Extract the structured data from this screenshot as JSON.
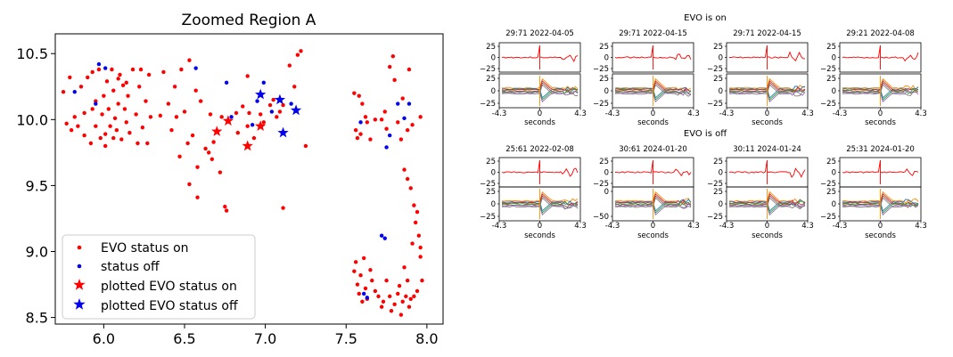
{
  "chart_data": [
    {
      "type": "scatter",
      "title": "Zoomed Region A",
      "xlim": [
        5.7,
        8.1
      ],
      "ylim": [
        8.45,
        10.65
      ],
      "x_ticks": [
        "6.0",
        "6.5",
        "7.0",
        "7.5",
        "8.0"
      ],
      "x_tick_values": [
        6.0,
        6.5,
        7.0,
        7.5,
        8.0
      ],
      "y_ticks": [
        "8.5",
        "9.0",
        "9.5",
        "10.0",
        "10.5"
      ],
      "y_tick_values": [
        8.5,
        9.0,
        9.5,
        10.0,
        10.5
      ],
      "legend": {
        "placement": "lower-left",
        "entries": [
          "EVO status on",
          "status off",
          "plotted EVO status on",
          "plotted EVO status off"
        ]
      },
      "series": [
        {
          "name": "EVO status on",
          "marker": "dot",
          "color": "#ff0000",
          "points": [
            [
              5.75,
              10.21
            ],
            [
              5.77,
              9.97
            ],
            [
              5.79,
              10.32
            ],
            [
              5.8,
              9.92
            ],
            [
              5.82,
              10.02
            ],
            [
              5.84,
              9.95
            ],
            [
              5.86,
              10.25
            ],
            [
              5.88,
              9.88
            ],
            [
              5.88,
              10.05
            ],
            [
              5.9,
              10.32
            ],
            [
              5.92,
              9.82
            ],
            [
              5.93,
              10.36
            ],
            [
              5.95,
              10.14
            ],
            [
              5.95,
              9.95
            ],
            [
              5.97,
              10.38
            ],
            [
              5.98,
              9.86
            ],
            [
              5.99,
              10.04
            ],
            [
              6.0,
              10.18
            ],
            [
              6.01,
              9.89
            ],
            [
              6.02,
              10.29
            ],
            [
              6.03,
              10.08
            ],
            [
              6.04,
              9.95
            ],
            [
              6.05,
              10.38
            ],
            [
              6.06,
              10.22
            ],
            [
              6.07,
              10.01
            ],
            [
              6.08,
              9.92
            ],
            [
              6.09,
              10.12
            ],
            [
              6.1,
              10.34
            ],
            [
              6.11,
              9.85
            ],
            [
              6.12,
              10.26
            ],
            [
              6.13,
              10.08
            ],
            [
              6.14,
              9.98
            ],
            [
              6.15,
              10.18
            ],
            [
              6.16,
              9.9
            ],
            [
              6.18,
              10.38
            ],
            [
              6.2,
              10.04
            ],
            [
              6.21,
              9.82
            ],
            [
              6.22,
              10.25
            ],
            [
              6.23,
              10.38
            ],
            [
              6.24,
              9.94
            ],
            [
              6.26,
              10.14
            ],
            [
              6.27,
              9.82
            ],
            [
              6.28,
              10.34
            ],
            [
              6.29,
              10.02
            ],
            [
              5.93,
              10.08
            ],
            [
              6.01,
              9.8
            ],
            [
              6.06,
              9.86
            ],
            [
              6.09,
              10.31
            ],
            [
              6.14,
              10.28
            ],
            [
              6.35,
              10.03
            ],
            [
              6.37,
              10.36
            ],
            [
              6.4,
              10.12
            ],
            [
              6.42,
              9.92
            ],
            [
              6.44,
              10.25
            ],
            [
              6.45,
              10.02
            ],
            [
              6.47,
              9.72
            ],
            [
              6.48,
              10.38
            ],
            [
              6.5,
              10.06
            ],
            [
              6.52,
              9.82
            ],
            [
              6.53,
              10.45
            ],
            [
              6.55,
              9.88
            ],
            [
              6.57,
              10.22
            ],
            [
              6.58,
              9.64
            ],
            [
              6.6,
              10.14
            ],
            [
              6.63,
              9.78
            ],
            [
              6.65,
              9.75
            ],
            [
              6.66,
              10.04
            ],
            [
              6.67,
              9.7
            ],
            [
              6.68,
              9.83
            ],
            [
              6.72,
              9.6
            ],
            [
              6.73,
              10.02
            ],
            [
              6.75,
              9.34
            ],
            [
              6.76,
              9.31
            ],
            [
              6.53,
              9.51
            ],
            [
              6.58,
              9.41
            ],
            [
              6.82,
              10.05
            ],
            [
              6.83,
              9.9
            ],
            [
              6.86,
              10.1
            ],
            [
              6.89,
              9.95
            ],
            [
              6.9,
              10.05
            ],
            [
              6.93,
              9.86
            ],
            [
              6.97,
              10.04
            ],
            [
              6.99,
              9.98
            ],
            [
              7.03,
              10.11
            ],
            [
              7.07,
              10.02
            ],
            [
              7.09,
              10.06
            ],
            [
              7.11,
              10.11
            ],
            [
              7.15,
              10.41
            ],
            [
              7.18,
              10.25
            ],
            [
              7.2,
              10.49
            ],
            [
              7.22,
              10.52
            ],
            [
              7.25,
              9.8
            ],
            [
              7.11,
              9.33
            ],
            [
              7.05,
              10.15
            ],
            [
              6.89,
              10.33
            ],
            [
              7.55,
              10.2
            ],
            [
              7.56,
              9.92
            ],
            [
              7.57,
              9.86
            ],
            [
              7.58,
              10.18
            ],
            [
              7.59,
              9.89
            ],
            [
              7.6,
              10.12
            ],
            [
              7.62,
              10.02
            ],
            [
              7.63,
              9.98
            ],
            [
              7.65,
              9.85
            ],
            [
              7.68,
              10.0
            ],
            [
              7.72,
              10.0
            ],
            [
              7.74,
              10.06
            ],
            [
              7.75,
              9.93
            ],
            [
              7.77,
              10.4
            ],
            [
              7.8,
              10.3
            ],
            [
              7.82,
              9.98
            ],
            [
              7.84,
              9.85
            ],
            [
              7.85,
              10.16
            ],
            [
              7.86,
              9.62
            ],
            [
              7.88,
              9.92
            ],
            [
              7.89,
              10.38
            ],
            [
              7.91,
              9.96
            ],
            [
              7.96,
              10.02
            ],
            [
              7.79,
              10.48
            ],
            [
              7.88,
              9.55
            ],
            [
              7.9,
              9.48
            ],
            [
              7.92,
              9.35
            ],
            [
              7.93,
              9.22
            ],
            [
              7.94,
              9.3
            ],
            [
              7.95,
              9.12
            ],
            [
              7.91,
              9.06
            ],
            [
              7.96,
              9.03
            ],
            [
              7.55,
              8.85
            ],
            [
              7.56,
              8.92
            ],
            [
              7.57,
              8.75
            ],
            [
              7.58,
              8.68
            ],
            [
              7.59,
              8.82
            ],
            [
              7.6,
              8.62
            ],
            [
              7.61,
              8.95
            ],
            [
              7.62,
              8.72
            ],
            [
              7.63,
              8.64
            ],
            [
              7.65,
              8.86
            ],
            [
              7.66,
              8.78
            ],
            [
              7.68,
              8.7
            ],
            [
              7.7,
              8.66
            ],
            [
              7.72,
              8.58
            ],
            [
              7.73,
              8.62
            ],
            [
              7.75,
              8.78
            ],
            [
              7.77,
              8.66
            ],
            [
              7.78,
              8.55
            ],
            [
              7.8,
              8.6
            ],
            [
              7.82,
              8.68
            ],
            [
              7.83,
              8.74
            ],
            [
              7.84,
              8.52
            ],
            [
              7.85,
              8.62
            ],
            [
              7.86,
              8.88
            ],
            [
              7.87,
              8.66
            ],
            [
              7.88,
              8.78
            ],
            [
              7.89,
              8.58
            ],
            [
              7.9,
              8.64
            ],
            [
              7.92,
              8.66
            ],
            [
              7.94,
              8.7
            ],
            [
              7.96,
              8.96
            ],
            [
              7.97,
              8.78
            ]
          ]
        },
        {
          "name": "status off",
          "marker": "dot",
          "color": "#0000ee",
          "points": [
            [
              5.82,
              10.21
            ],
            [
              5.95,
              10.12
            ],
            [
              5.97,
              10.42
            ],
            [
              6.01,
              10.39
            ],
            [
              6.57,
              10.39
            ],
            [
              6.76,
              10.28
            ],
            [
              6.79,
              10.02
            ],
            [
              6.92,
              9.96
            ],
            [
              6.95,
              10.14
            ],
            [
              6.99,
              10.28
            ],
            [
              7.04,
              10.06
            ],
            [
              7.16,
              10.12
            ],
            [
              7.59,
              9.98
            ],
            [
              7.75,
              9.79
            ],
            [
              7.77,
              9.88
            ],
            [
              7.82,
              10.12
            ],
            [
              7.86,
              10.01
            ],
            [
              7.89,
              10.12
            ],
            [
              7.61,
              8.68
            ],
            [
              7.63,
              8.65
            ],
            [
              7.72,
              9.12
            ],
            [
              7.74,
              9.1
            ]
          ]
        },
        {
          "name": "plotted EVO status on",
          "marker": "star",
          "color": "#ff0000",
          "points": [
            [
              6.7,
              9.91
            ],
            [
              6.77,
              9.99
            ],
            [
              6.89,
              9.8
            ],
            [
              6.97,
              9.95
            ]
          ]
        },
        {
          "name": "plotted EVO status off",
          "marker": "star",
          "color": "#0000ee",
          "points": [
            [
              6.97,
              10.19
            ],
            [
              7.09,
              10.15
            ],
            [
              7.11,
              9.9
            ],
            [
              7.19,
              10.07
            ]
          ]
        }
      ]
    },
    {
      "type": "line",
      "group_title": "EVO is on",
      "panels": [
        {
          "title": "29:71 2022-04-05",
          "seed": 3
        },
        {
          "title": "29:71 2022-04-15",
          "seed": 5
        },
        {
          "title": "29:71 2022-04-15",
          "seed": 7
        },
        {
          "title": "29:21 2022-04-08",
          "seed": 9
        }
      ],
      "top_y_ticks": [
        "25",
        "0",
        "−25"
      ],
      "bottom_y_ticks": [
        "25",
        "0",
        "−25"
      ],
      "x_ticks": [
        "-4.3",
        "0",
        "4.3"
      ],
      "xlabel": "seconds",
      "top_series_color": "#ff0000",
      "bottom_series_colors": [
        "#ff8c00",
        "#1f77b4",
        "#d62728",
        "#2ca02c",
        "#8c564b",
        "#9467bd",
        "#7f7f7f"
      ]
    },
    {
      "type": "line",
      "group_title": "EVO is off",
      "panels": [
        {
          "title": "25:61 2022-02-08",
          "seed": 11,
          "bottom_y_ticks": [
            "25",
            "0",
            "−25"
          ]
        },
        {
          "title": "30:61 2024-01-20",
          "seed": 13,
          "bottom_y_ticks": [
            "0",
            "−50"
          ]
        },
        {
          "title": "30:11 2024-01-24",
          "seed": 15,
          "bottom_y_ticks": [
            "25",
            "0",
            "−25"
          ]
        },
        {
          "title": "25:31 2024-01-20",
          "seed": 17,
          "bottom_y_ticks": [
            "25",
            "0",
            "−25"
          ]
        }
      ],
      "top_y_ticks": [
        "25",
        "0",
        "−25"
      ],
      "x_ticks": [
        "-4.3",
        "0",
        "4.3"
      ],
      "xlabel": "seconds",
      "top_series_color": "#ff0000",
      "bottom_series_colors": [
        "#ff8c00",
        "#1f77b4",
        "#d62728",
        "#2ca02c",
        "#8c564b",
        "#9467bd",
        "#7f7f7f"
      ]
    }
  ]
}
